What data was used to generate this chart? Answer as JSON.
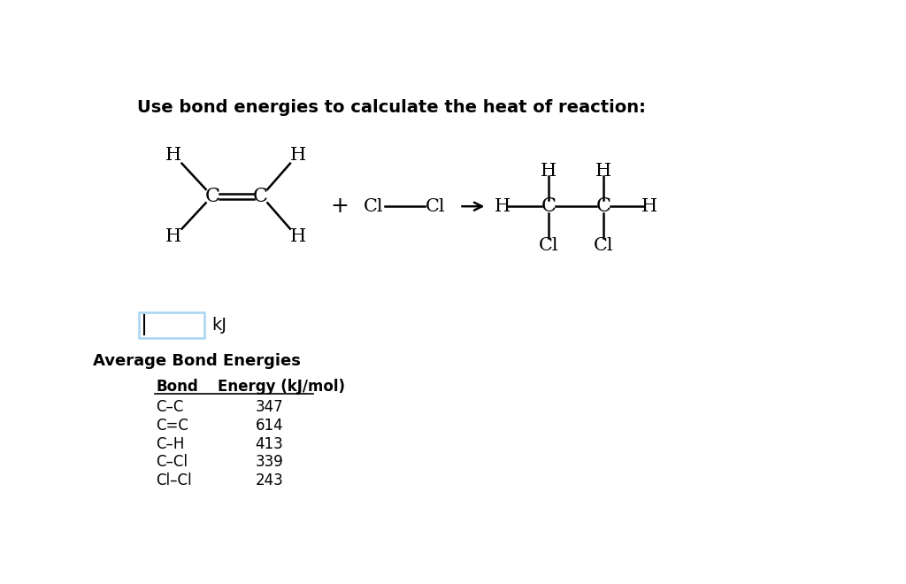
{
  "title": "Use bond energies to calculate the heat of reaction:",
  "title_fontsize": 14,
  "background_color": "#ffffff",
  "table_title": "Average Bond Energies",
  "table_headers": [
    "Bond",
    "Energy (kJ/mol)"
  ],
  "table_bonds": [
    "C–C",
    "C=C",
    "C–H",
    "C–Cl",
    "Cl–Cl"
  ],
  "table_energies": [
    "347",
    "614",
    "413",
    "339",
    "243"
  ],
  "input_box_color": "#a8d4f0",
  "kJ_label": "kJ",
  "mol_fontsize": 15,
  "mol_font": "DejaVu Serif",
  "tbl_font": "DejaVu Serif"
}
